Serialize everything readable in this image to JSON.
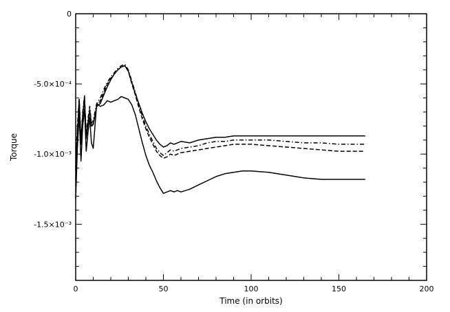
{
  "chart_data": {
    "type": "line",
    "xlabel": "Time (in orbits)",
    "ylabel": "Torque",
    "xlim": [
      0,
      200
    ],
    "ylim": [
      -0.0019,
      0.0
    ],
    "grid": false,
    "x_ticks": [
      0,
      50,
      100,
      150,
      200
    ],
    "x_tick_labels": [
      "0",
      "50",
      "100",
      "150",
      "200"
    ],
    "y_ticks": [
      0,
      -0.0005,
      -0.001,
      -0.0015
    ],
    "y_tick_labels": [
      "0",
      "-5.0×10⁻⁴",
      "-1.0×10⁻³",
      "-1.5×10⁻³"
    ],
    "series": [
      {
        "style": "solid",
        "x": [
          0,
          1,
          2,
          3,
          4,
          5,
          6,
          7,
          8,
          9,
          10,
          12,
          14,
          16,
          18,
          20,
          22,
          24,
          26,
          28,
          30,
          32,
          34,
          36,
          38,
          40,
          42,
          44,
          46,
          48,
          50,
          52,
          54,
          56,
          58,
          60,
          65,
          70,
          75,
          80,
          85,
          90,
          95,
          100,
          110,
          120,
          130,
          140,
          150,
          160,
          165
        ],
        "y": [
          -0.00132,
          -0.00095,
          -0.00072,
          -0.00105,
          -0.0008,
          -0.00068,
          -0.00098,
          -0.00085,
          -0.00074,
          -0.00092,
          -0.00096,
          -0.00064,
          -0.00066,
          -0.00065,
          -0.00062,
          -0.00063,
          -0.00062,
          -0.00061,
          -0.00059,
          -0.0006,
          -0.00061,
          -0.00065,
          -0.00072,
          -0.00082,
          -0.00092,
          -0.00101,
          -0.00108,
          -0.00113,
          -0.00119,
          -0.00124,
          -0.00128,
          -0.00127,
          -0.00126,
          -0.00127,
          -0.00126,
          -0.00127,
          -0.00125,
          -0.00122,
          -0.00119,
          -0.00116,
          -0.00114,
          -0.00113,
          -0.00112,
          -0.00112,
          -0.00113,
          -0.00115,
          -0.00117,
          -0.00118,
          -0.00118,
          -0.00118,
          -0.00118
        ]
      },
      {
        "style": "solid",
        "x": [
          0,
          1,
          2,
          3,
          4,
          5,
          6,
          7,
          8,
          9,
          10,
          12,
          14,
          16,
          18,
          20,
          22,
          24,
          26,
          28,
          30,
          32,
          34,
          36,
          38,
          40,
          42,
          44,
          46,
          48,
          50,
          52,
          54,
          56,
          58,
          60,
          65,
          70,
          75,
          80,
          85,
          90,
          95,
          100,
          110,
          120,
          130,
          140,
          150,
          160,
          165
        ],
        "y": [
          -0.00118,
          -0.00085,
          -0.00062,
          -0.00092,
          -0.00072,
          -0.0006,
          -0.00088,
          -0.00078,
          -0.00068,
          -0.0008,
          -0.00079,
          -0.00066,
          -0.00064,
          -0.00058,
          -0.00052,
          -0.00047,
          -0.00043,
          -0.0004,
          -0.00038,
          -0.00037,
          -0.00041,
          -0.00049,
          -0.00057,
          -0.00064,
          -0.00071,
          -0.00077,
          -0.00082,
          -0.00086,
          -0.0009,
          -0.00093,
          -0.00095,
          -0.00094,
          -0.00092,
          -0.00093,
          -0.00092,
          -0.00091,
          -0.00092,
          -0.0009,
          -0.00089,
          -0.00088,
          -0.00088,
          -0.00087,
          -0.00087,
          -0.00087,
          -0.00087,
          -0.00087,
          -0.00087,
          -0.00087,
          -0.00087,
          -0.00087,
          -0.00087
        ]
      },
      {
        "style": "dash-dot",
        "x": [
          0,
          1,
          2,
          3,
          4,
          5,
          6,
          7,
          8,
          9,
          10,
          12,
          14,
          16,
          18,
          20,
          22,
          24,
          26,
          28,
          30,
          32,
          34,
          36,
          38,
          40,
          42,
          44,
          46,
          48,
          50,
          52,
          54,
          56,
          58,
          60,
          65,
          70,
          75,
          80,
          85,
          90,
          95,
          100,
          110,
          120,
          130,
          140,
          150,
          160,
          165
        ],
        "y": [
          -0.0011,
          -0.0008,
          -0.0006,
          -0.0009,
          -0.0007,
          -0.00058,
          -0.00086,
          -0.00075,
          -0.00066,
          -0.00078,
          -0.00076,
          -0.00064,
          -0.0006,
          -0.00054,
          -0.00049,
          -0.00045,
          -0.00042,
          -0.00039,
          -0.00037,
          -0.00036,
          -0.0004,
          -0.00048,
          -0.00056,
          -0.00065,
          -0.00073,
          -0.0008,
          -0.00086,
          -0.00091,
          -0.00096,
          -0.00099,
          -0.00101,
          -0.00099,
          -0.00097,
          -0.00098,
          -0.00097,
          -0.00096,
          -0.00095,
          -0.00094,
          -0.00092,
          -0.00091,
          -0.00091,
          -0.0009,
          -0.0009,
          -0.0009,
          -0.0009,
          -0.00091,
          -0.00092,
          -0.00092,
          -0.00093,
          -0.00093,
          -0.00093
        ]
      },
      {
        "style": "dashed",
        "x": [
          0,
          1,
          2,
          3,
          4,
          5,
          6,
          7,
          8,
          9,
          10,
          12,
          14,
          16,
          18,
          20,
          22,
          24,
          26,
          28,
          30,
          32,
          34,
          36,
          38,
          40,
          42,
          44,
          46,
          48,
          50,
          52,
          54,
          56,
          58,
          60,
          65,
          70,
          75,
          80,
          85,
          90,
          95,
          100,
          110,
          120,
          130,
          140,
          150,
          160,
          165
        ],
        "y": [
          -0.00112,
          -0.00082,
          -0.00062,
          -0.00093,
          -0.00074,
          -0.0006,
          -0.00089,
          -0.00078,
          -0.00069,
          -0.00081,
          -0.00078,
          -0.00066,
          -0.00062,
          -0.00056,
          -0.0005,
          -0.00046,
          -0.00043,
          -0.0004,
          -0.00038,
          -0.00037,
          -0.00041,
          -0.0005,
          -0.00058,
          -0.00067,
          -0.00075,
          -0.00082,
          -0.00088,
          -0.00093,
          -0.00098,
          -0.00101,
          -0.00103,
          -0.00102,
          -0.001,
          -0.00101,
          -0.001,
          -0.00099,
          -0.00098,
          -0.00097,
          -0.00096,
          -0.00095,
          -0.00094,
          -0.00093,
          -0.00093,
          -0.00093,
          -0.00094,
          -0.00095,
          -0.00096,
          -0.00097,
          -0.00098,
          -0.00098,
          -0.00098
        ]
      }
    ]
  }
}
